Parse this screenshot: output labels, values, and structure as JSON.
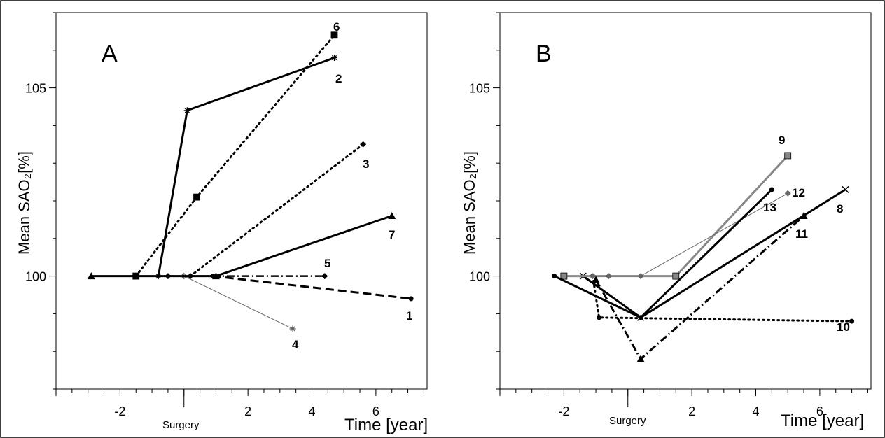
{
  "chart_data": [
    {
      "type": "line",
      "panel_label": "A",
      "ylabel": "Mean SAO₂[%]",
      "xlabel": "Time [year]",
      "x_marker_label": "Surgery",
      "x_marker_value": 0,
      "xlim": [
        -4.0,
        7.6
      ],
      "ylim": [
        97.0,
        107.0
      ],
      "x_ticks": [
        -2,
        2,
        4,
        6
      ],
      "y_ticks": [
        100,
        105
      ],
      "series": [
        {
          "label": "1",
          "style": "dashed",
          "width": 3,
          "color": "#000000",
          "marker": "dot",
          "points": [
            [
              0.9,
              100.0
            ],
            [
              7.1,
              99.4
            ]
          ]
        },
        {
          "label": "2",
          "style": "solid",
          "width": 3,
          "color": "#000000",
          "marker": "star",
          "points": [
            [
              -0.8,
              100.0
            ],
            [
              0.1,
              104.4
            ],
            [
              4.7,
              105.8
            ]
          ]
        },
        {
          "label": "3",
          "style": "dotted",
          "width": 3,
          "color": "#000000",
          "marker": "diamond",
          "points": [
            [
              0.2,
              100.0
            ],
            [
              5.6,
              103.5
            ]
          ]
        },
        {
          "label": "4",
          "style": "solid",
          "width": 1,
          "color": "#666666",
          "marker": "star",
          "points": [
            [
              0.0,
              100.0
            ],
            [
              3.4,
              98.6
            ]
          ]
        },
        {
          "label": "5",
          "style": "dashdot",
          "width": 2.5,
          "color": "#000000",
          "marker": "diamond",
          "points": [
            [
              -0.5,
              100.0
            ],
            [
              4.4,
              100.0
            ]
          ]
        },
        {
          "label": "6",
          "style": "dotted",
          "width": 3,
          "color": "#000000",
          "marker": "square",
          "points": [
            [
              -1.5,
              100.0
            ],
            [
              0.4,
              102.1
            ],
            [
              4.7,
              106.4
            ]
          ]
        },
        {
          "label": "7",
          "style": "solid",
          "width": 3,
          "color": "#000000",
          "marker": "triangle",
          "points": [
            [
              -2.9,
              100.0
            ],
            [
              1.0,
              100.0
            ],
            [
              6.5,
              101.6
            ]
          ]
        }
      ]
    },
    {
      "type": "line",
      "panel_label": "B",
      "ylabel": "Mean SAO₂[%]",
      "xlabel": "Time [year]",
      "x_marker_label": "Surgery",
      "x_marker_value": 0,
      "xlim": [
        -4.0,
        7.6
      ],
      "ylim": [
        97.0,
        107.0
      ],
      "x_ticks": [
        -2,
        2,
        4,
        6
      ],
      "y_ticks": [
        100,
        105
      ],
      "series": [
        {
          "label": "8",
          "style": "solid",
          "width": 3,
          "color": "#000000",
          "marker": "x",
          "points": [
            [
              -1.4,
              100.0
            ],
            [
              0.4,
              98.9
            ],
            [
              6.8,
              102.3
            ]
          ]
        },
        {
          "label": "9",
          "style": "solid",
          "width": 3,
          "color": "#888888",
          "marker": "square",
          "points": [
            [
              -2.0,
              100.0
            ],
            [
              1.5,
              100.0
            ],
            [
              5.0,
              103.2
            ]
          ]
        },
        {
          "label": "10",
          "style": "dotted",
          "width": 3,
          "color": "#000000",
          "marker": "dot",
          "points": [
            [
              -1.1,
              100.0
            ],
            [
              -0.9,
              98.9
            ],
            [
              7.0,
              98.8
            ]
          ]
        },
        {
          "label": "11",
          "style": "dashdot",
          "width": 3,
          "color": "#000000",
          "marker": "triangle",
          "points": [
            [
              -1.0,
              99.9
            ],
            [
              0.4,
              97.8
            ],
            [
              5.5,
              101.6
            ]
          ]
        },
        {
          "label": "12",
          "style": "solid",
          "width": 1,
          "color": "#666666",
          "marker": "diamond",
          "points": [
            [
              -1.1,
              100.0
            ],
            [
              -0.6,
              100.0
            ],
            [
              0.4,
              100.0
            ],
            [
              5.0,
              102.2
            ]
          ]
        },
        {
          "label": "13",
          "style": "solid",
          "width": 3,
          "color": "#000000",
          "marker": "dot",
          "points": [
            [
              -2.3,
              100.0
            ],
            [
              0.4,
              98.9
            ],
            [
              4.5,
              102.3
            ]
          ]
        }
      ]
    }
  ]
}
